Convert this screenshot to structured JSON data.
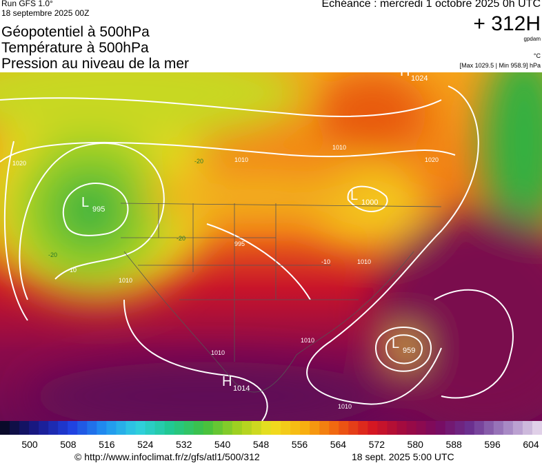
{
  "header": {
    "run": "Run GFS 1.0°",
    "run_date": "18 septembre 2025 00Z",
    "titles": [
      "Géopotentiel à 500hPa",
      "Température à 500hPa",
      "Pression au niveau de la mer"
    ],
    "valid_time": "Echéance : mercredi 1 octobre 2025 0h UTC",
    "lead": "+ 312H",
    "unit_geo": "gpdam",
    "unit_temp": "°C",
    "pressure_range": "[Max 1029.5 | Min 958.9] hPa"
  },
  "map": {
    "pressure_centers": [
      {
        "symbol": "L",
        "value": 995
      },
      {
        "symbol": "L",
        "value": 1000
      },
      {
        "symbol": "H",
        "value": 1024
      },
      {
        "symbol": "L",
        "value": 959
      },
      {
        "symbol": "H",
        "value": 1014
      }
    ],
    "contour_labels": [
      995,
      1010,
      1010,
      1020,
      -20,
      -20,
      -20,
      1010,
      1010,
      1010,
      -10,
      1010,
      1010,
      1020,
      -10
    ]
  },
  "colorbar": {
    "ticks": [
      500,
      508,
      516,
      524,
      532,
      540,
      548,
      556,
      564,
      572,
      580,
      588,
      596,
      604
    ]
  },
  "footer": {
    "url": "© http://www.infoclimat.fr/z/gfs/atl1/500/312",
    "generated": "18 sept. 2025  5:00 UTC"
  }
}
